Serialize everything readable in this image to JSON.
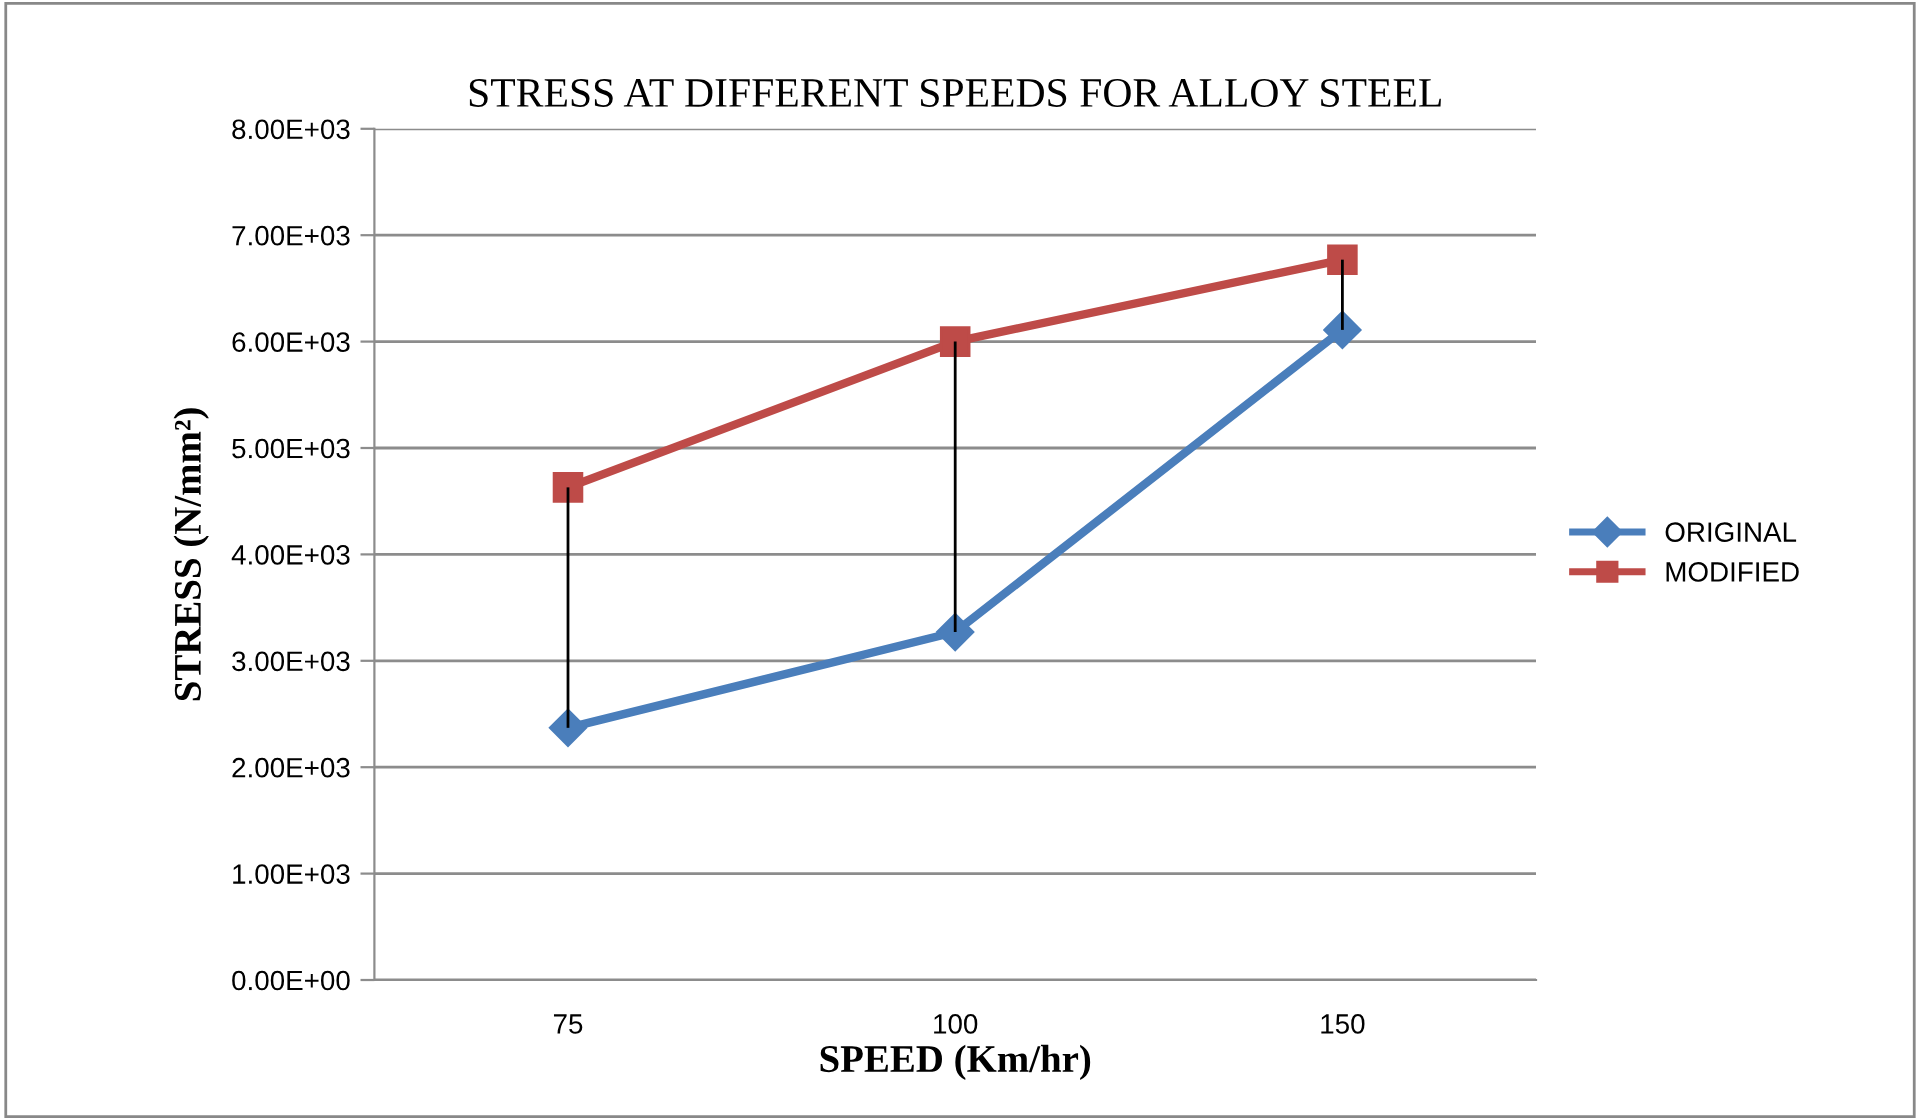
{
  "chart_data": {
    "type": "line",
    "title": "STRESS AT DIFFERENT SPEEDS FOR ALLOY STEEL",
    "xlabel": "SPEED (Km/hr)",
    "ylabel": "STRESS (N/mm²)",
    "categories": [
      "75",
      "100",
      "150"
    ],
    "series": [
      {
        "name": "ORIGINAL",
        "color": "#4a7ebb",
        "marker": "diamond",
        "values": [
          2370,
          3270,
          6110
        ],
        "errors": [
          [
            2370,
            4630
          ],
          [
            3270,
            6000
          ],
          [
            6110,
            6770
          ]
        ]
      },
      {
        "name": "MODIFIED",
        "color": "#be4b48",
        "marker": "square",
        "values": [
          4630,
          6000,
          6770
        ]
      }
    ],
    "ylim": [
      0,
      8000
    ],
    "yticks": [
      {
        "value": 0,
        "label": "0.00E+00"
      },
      {
        "value": 1000,
        "label": "1.00E+03"
      },
      {
        "value": 2000,
        "label": "2.00E+03"
      },
      {
        "value": 3000,
        "label": "3.00E+03"
      },
      {
        "value": 4000,
        "label": "4.00E+03"
      },
      {
        "value": 5000,
        "label": "5.00E+03"
      },
      {
        "value": 6000,
        "label": "6.00E+03"
      },
      {
        "value": 7000,
        "label": "7.00E+03"
      },
      {
        "value": 8000,
        "label": "8.00E+03"
      }
    ],
    "grid": "y",
    "legend": "right",
    "line_style": "solid"
  }
}
